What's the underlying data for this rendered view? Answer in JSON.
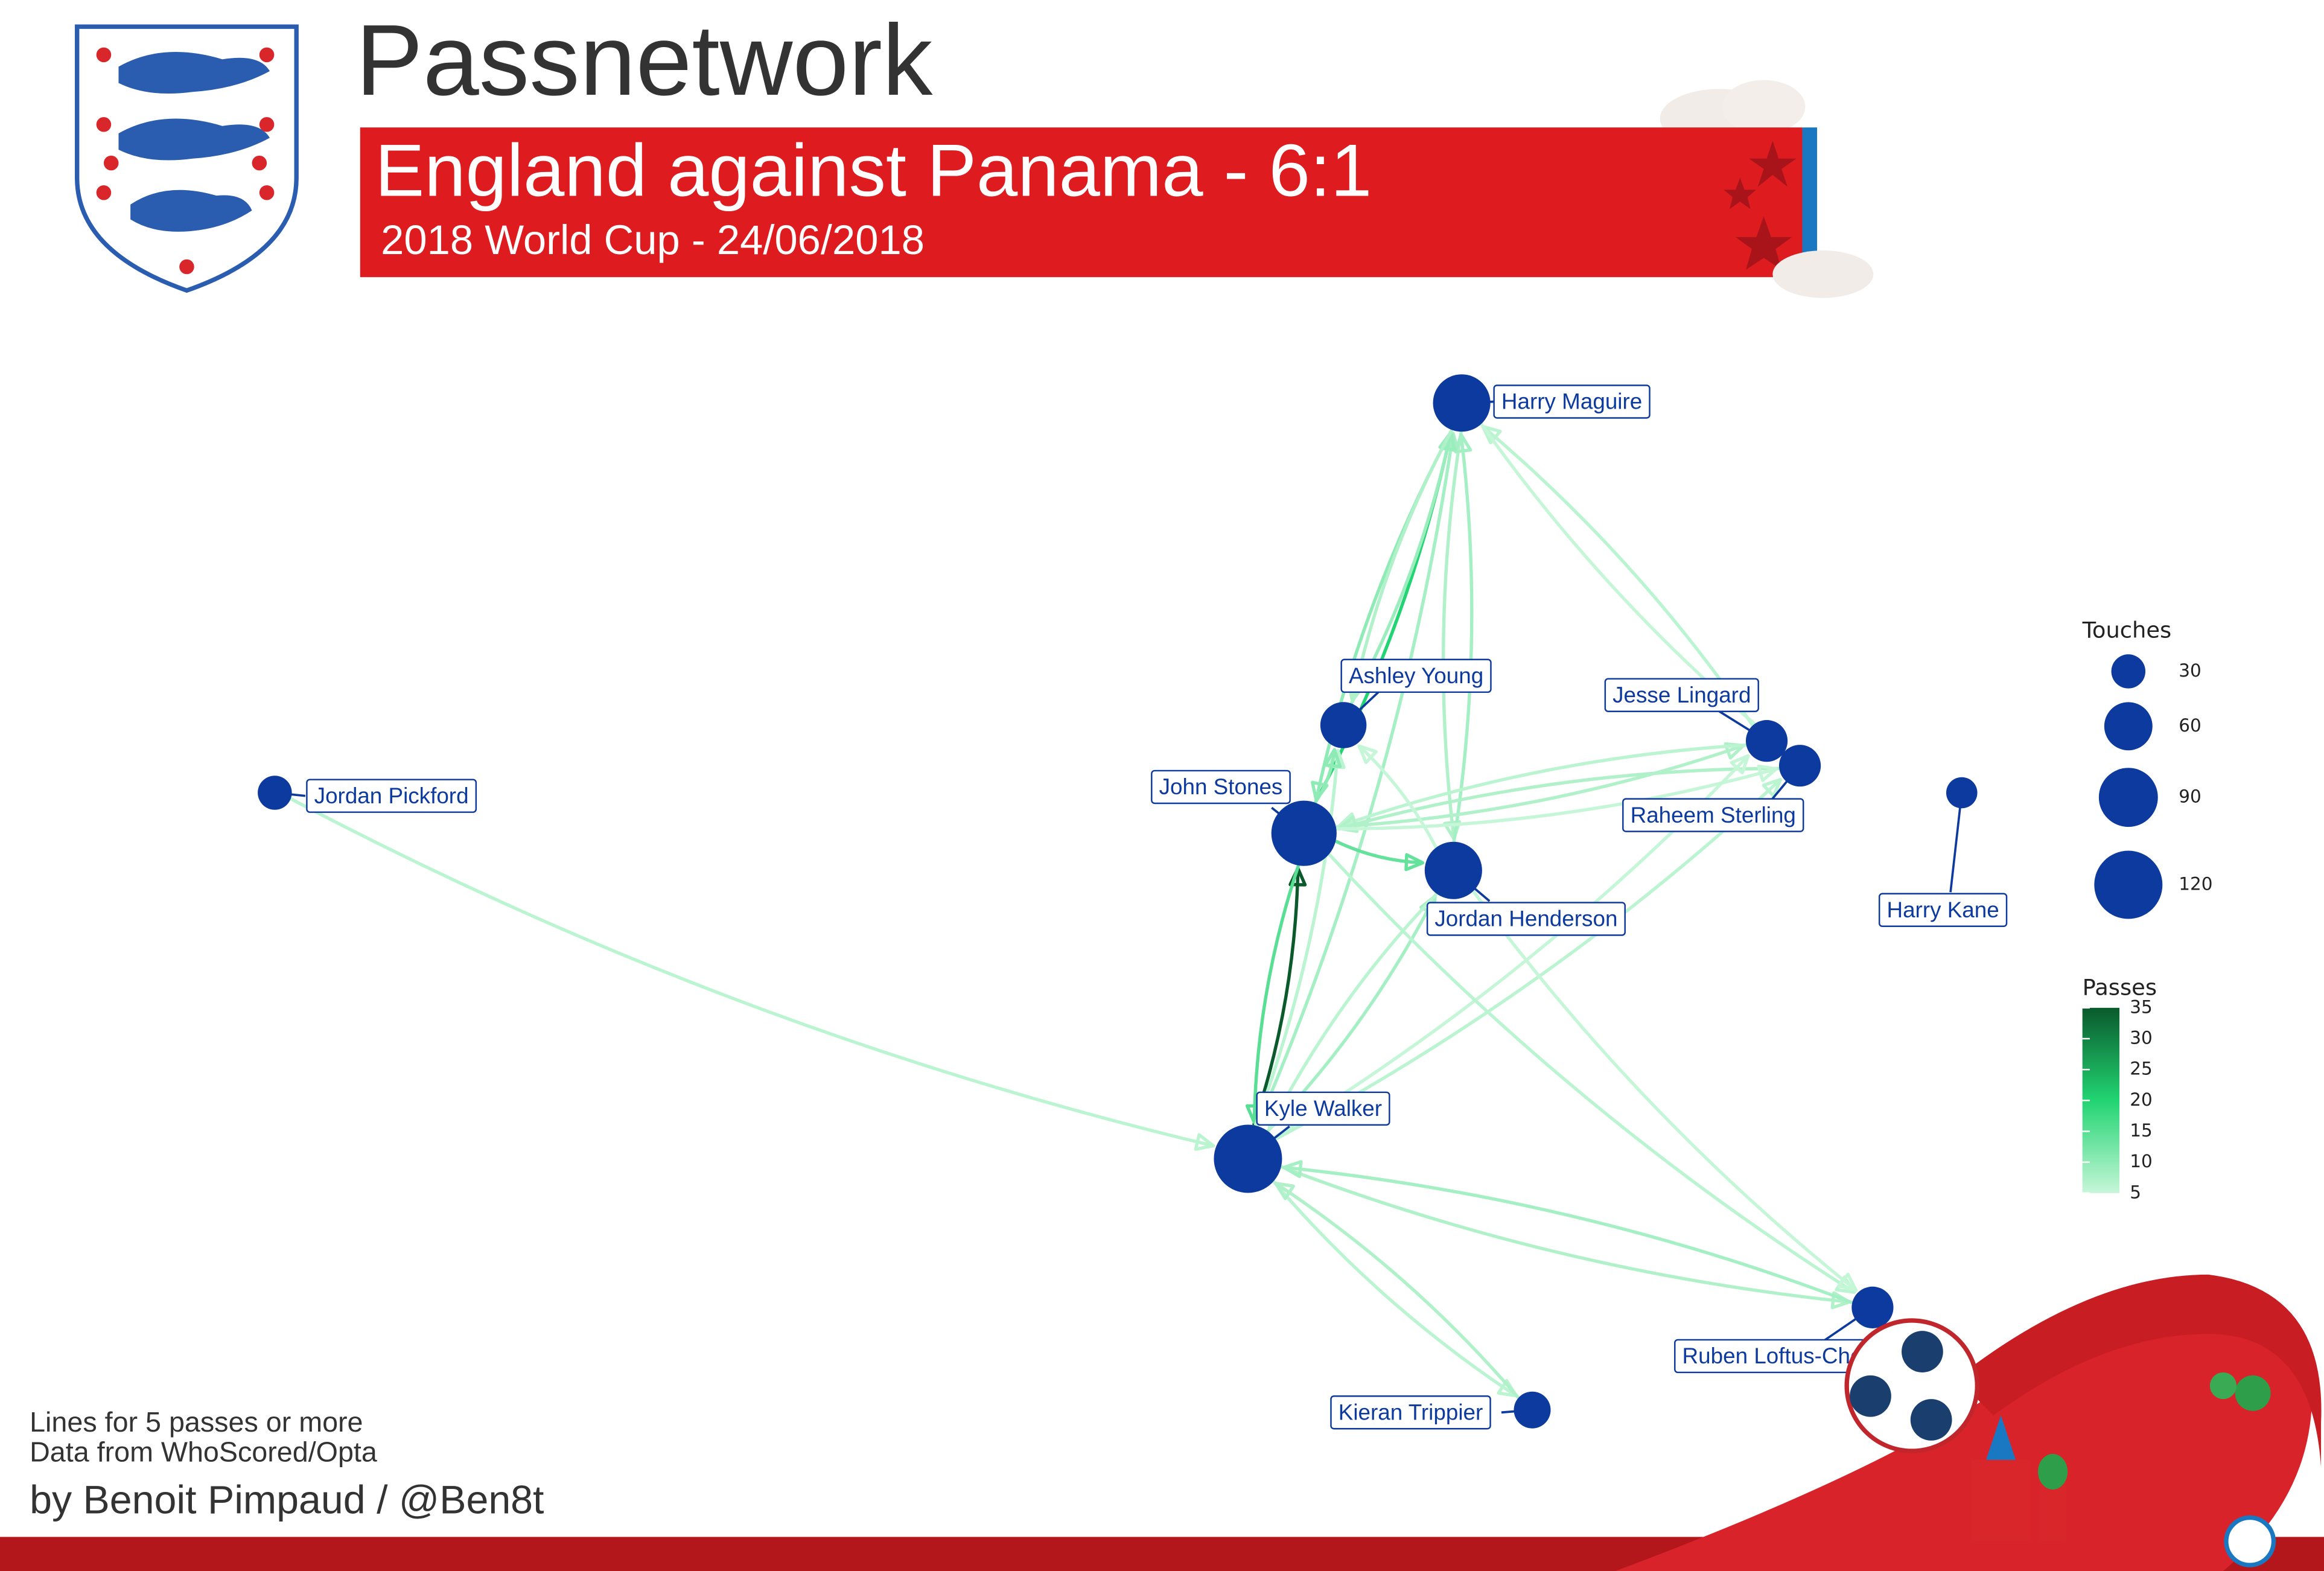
{
  "chart_data": {
    "type": "network",
    "title": "Passnetwork",
    "subtitle": "England against Panama - 6:1",
    "event": "2018 World Cup - 24/06/2018",
    "notes": [
      "Lines for 5 passes or more",
      "Data from WhoScored/Opta"
    ],
    "credit": "by Benoit Pimpaud / @Ben8t",
    "xlim": [
      0,
      100
    ],
    "ylim": [
      0,
      100
    ],
    "node_color": "#0d3a9e",
    "nodes": [
      {
        "name": "Harry Maguire",
        "x": 63.3,
        "y": 95.8,
        "touches": 85
      },
      {
        "name": "Ashley Young",
        "x": 57.6,
        "y": 67.2,
        "touches": 55
      },
      {
        "name": "Jesse Lingard",
        "x": 78.0,
        "y": 65.8,
        "touches": 45
      },
      {
        "name": "Raheem Sterling",
        "x": 79.6,
        "y": 63.6,
        "touches": 45
      },
      {
        "name": "Harry Kane",
        "x": 87.4,
        "y": 61.2,
        "touches": 25
      },
      {
        "name": "Jordan Pickford",
        "x": 6.1,
        "y": 61.2,
        "touches": 30
      },
      {
        "name": "John Stones",
        "x": 55.7,
        "y": 57.6,
        "touches": 110
      },
      {
        "name": "Jordan Henderson",
        "x": 62.9,
        "y": 54.3,
        "touches": 85
      },
      {
        "name": "Kyle Walker",
        "x": 53.0,
        "y": 28.7,
        "touches": 120
      },
      {
        "name": "Ruben Loftus-Cheek",
        "x": 83.1,
        "y": 15.5,
        "touches": 45
      },
      {
        "name": "Kieran Trippier",
        "x": 66.7,
        "y": 6.4,
        "touches": 35
      }
    ],
    "edges": [
      {
        "from": 5,
        "to": 8,
        "passes": 6
      },
      {
        "from": 8,
        "to": 6,
        "passes": 35
      },
      {
        "from": 6,
        "to": 8,
        "passes": 15
      },
      {
        "from": 6,
        "to": 0,
        "passes": 20
      },
      {
        "from": 0,
        "to": 6,
        "passes": 10
      },
      {
        "from": 8,
        "to": 0,
        "passes": 8
      },
      {
        "from": 0,
        "to": 7,
        "passes": 7
      },
      {
        "from": 7,
        "to": 0,
        "passes": 8
      },
      {
        "from": 1,
        "to": 0,
        "passes": 9
      },
      {
        "from": 0,
        "to": 1,
        "passes": 7
      },
      {
        "from": 2,
        "to": 0,
        "passes": 6
      },
      {
        "from": 0,
        "to": 3,
        "passes": 5
      },
      {
        "from": 6,
        "to": 2,
        "passes": 7
      },
      {
        "from": 2,
        "to": 6,
        "passes": 6
      },
      {
        "from": 3,
        "to": 6,
        "passes": 7
      },
      {
        "from": 6,
        "to": 3,
        "passes": 5
      },
      {
        "from": 6,
        "to": 7,
        "passes": 14
      },
      {
        "from": 7,
        "to": 1,
        "passes": 5
      },
      {
        "from": 8,
        "to": 1,
        "passes": 6
      },
      {
        "from": 6,
        "to": 1,
        "passes": 10
      },
      {
        "from": 8,
        "to": 7,
        "passes": 8
      },
      {
        "from": 7,
        "to": 8,
        "passes": 6
      },
      {
        "from": 8,
        "to": 2,
        "passes": 5
      },
      {
        "from": 8,
        "to": 3,
        "passes": 6
      },
      {
        "from": 8,
        "to": 9,
        "passes": 7
      },
      {
        "from": 9,
        "to": 8,
        "passes": 8
      },
      {
        "from": 6,
        "to": 9,
        "passes": 6
      },
      {
        "from": 7,
        "to": 9,
        "passes": 5
      },
      {
        "from": 8,
        "to": 10,
        "passes": 6
      },
      {
        "from": 10,
        "to": 8,
        "passes": 7
      }
    ],
    "size_legend": {
      "title": "Touches",
      "values": [
        30,
        60,
        90,
        120
      ]
    },
    "color_legend": {
      "title": "Passes",
      "lim": [
        5,
        35
      ],
      "ticks": [
        5,
        10,
        15,
        20,
        25,
        30,
        35
      ],
      "colors": [
        "#c6f6d8",
        "#22d472",
        "#0a5a2c"
      ]
    }
  }
}
